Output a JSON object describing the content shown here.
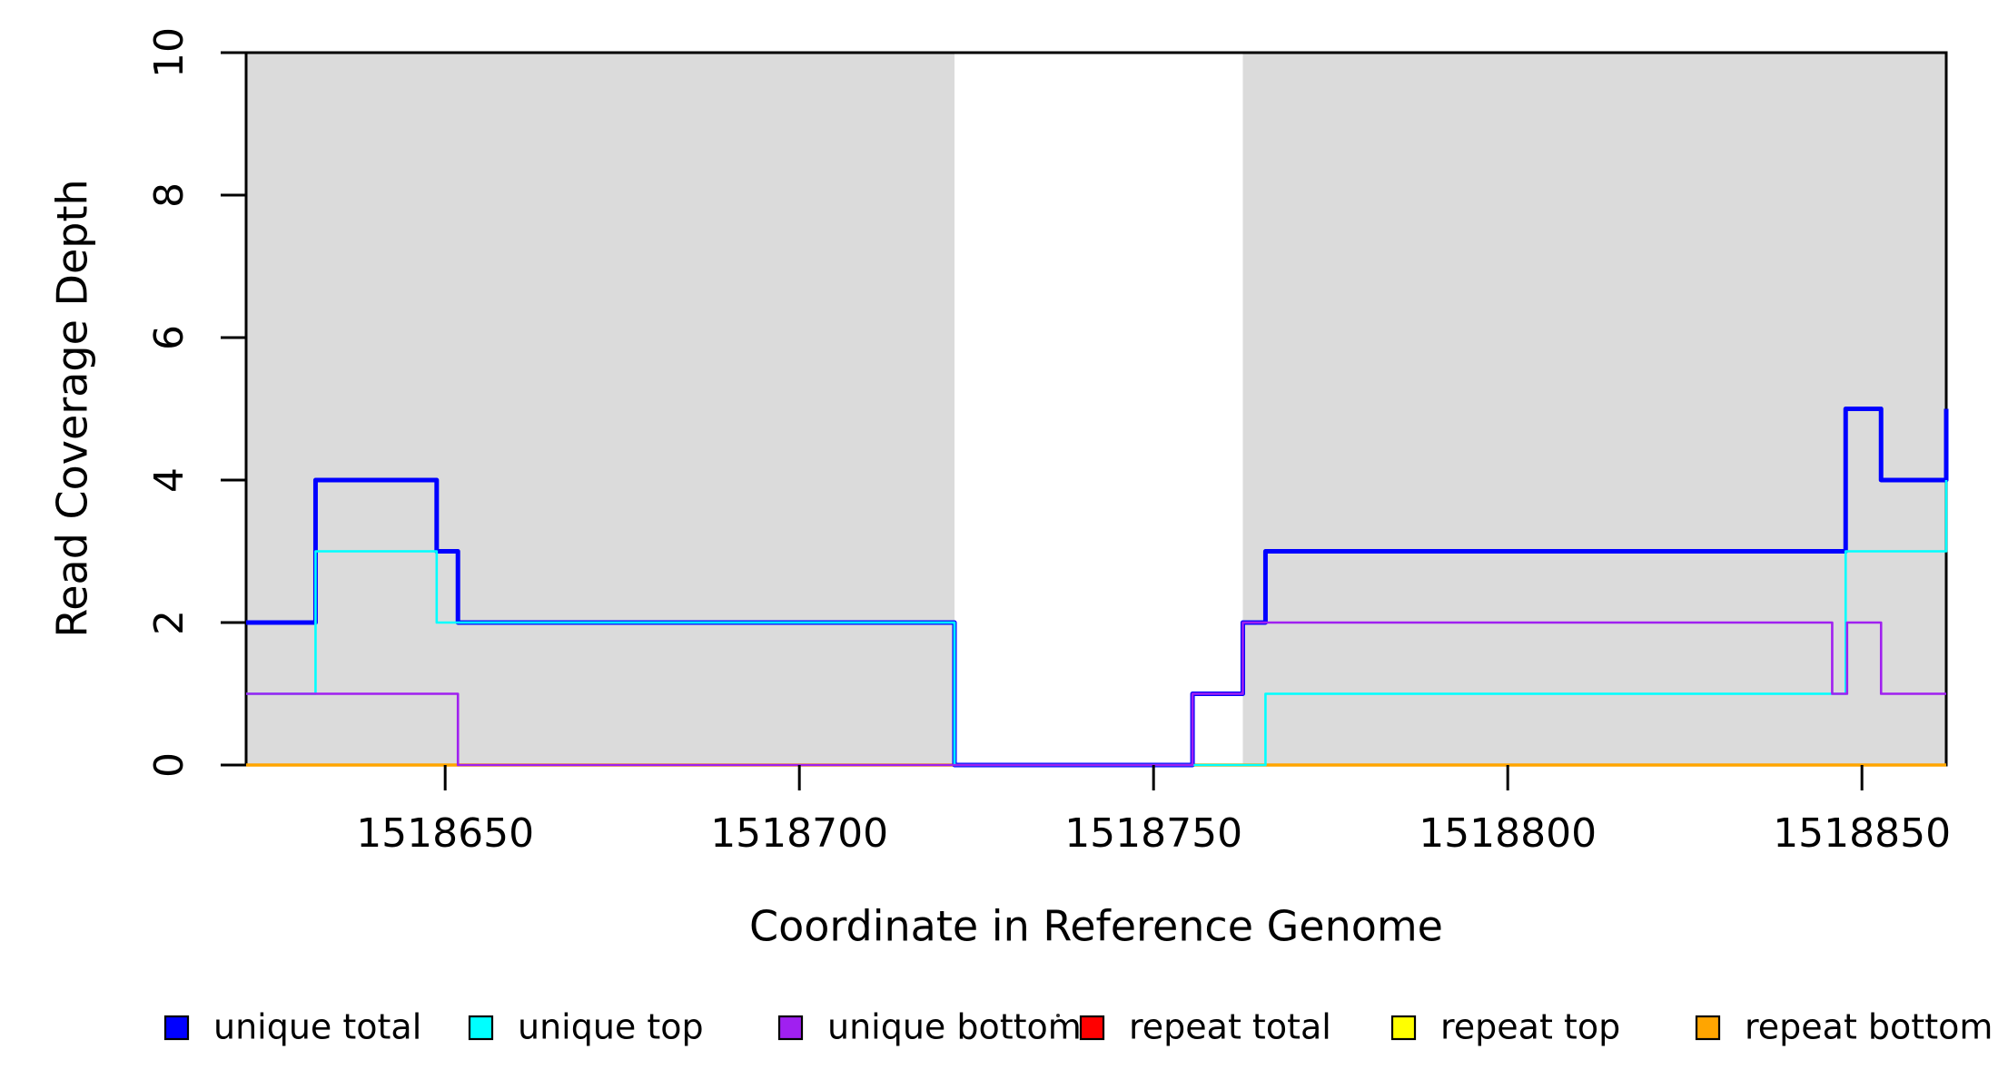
{
  "figure": {
    "background": "#ffffff",
    "text_color": "#000000"
  },
  "chart_data": {
    "type": "line",
    "subtype": "step-coverage",
    "title": "",
    "xlabel": "Coordinate in Reference Genome",
    "ylabel": "Read Coverage Depth",
    "xlim": [
      1518621.9,
      1518861.9
    ],
    "ylim": [
      0,
      10
    ],
    "xticks": [
      1518650,
      1518700,
      1518750,
      1518800,
      1518850
    ],
    "yticks": [
      0,
      2,
      4,
      6,
      8,
      10
    ],
    "grid": false,
    "legend_position": "bottom-horizontal",
    "shaded_regions": {
      "color": "#dbdbdb",
      "ranges": [
        [
          1518621.9,
          1518721.9
        ],
        [
          1518762.6,
          1518861.9
        ]
      ]
    },
    "series": [
      {
        "name": "repeat-total",
        "label": "repeat total",
        "color": "#ff0000",
        "line_width": 2.6,
        "steps": [
          [
            1518621.9,
            0
          ]
        ]
      },
      {
        "name": "repeat-top",
        "label": "repeat top",
        "color": "#ffff00",
        "line_width": 2.6,
        "steps": [
          [
            1518621.9,
            0
          ]
        ]
      },
      {
        "name": "repeat-bottom",
        "label": "repeat bottom",
        "color": "#ffa500",
        "line_width": 3.5,
        "steps": [
          [
            1518621.9,
            0
          ]
        ]
      },
      {
        "name": "unique-total",
        "label": "unique total",
        "color": "#0000ff",
        "line_width": 5,
        "steps": [
          [
            1518621.9,
            2
          ],
          [
            1518631.7,
            4
          ],
          [
            1518648.8,
            3
          ],
          [
            1518651.8,
            2
          ],
          [
            1518721.9,
            0
          ],
          [
            1518755.5,
            1
          ],
          [
            1518762.6,
            2
          ],
          [
            1518765.8,
            3
          ],
          [
            1518847.7,
            5
          ],
          [
            1518852.7,
            4
          ],
          [
            1518861.9,
            5
          ]
        ]
      },
      {
        "name": "unique-top",
        "label": "unique top",
        "color": "#00ffff",
        "line_width": 2.6,
        "steps": [
          [
            1518621.9,
            1
          ],
          [
            1518631.7,
            3
          ],
          [
            1518648.8,
            2
          ],
          [
            1518721.9,
            0
          ],
          [
            1518765.8,
            1
          ],
          [
            1518847.7,
            3
          ],
          [
            1518861.9,
            4
          ]
        ]
      },
      {
        "name": "unique-bottom",
        "label": "unique bottom",
        "color": "#a020f0",
        "line_width": 2.6,
        "steps": [
          [
            1518621.9,
            1
          ],
          [
            1518651.8,
            0
          ],
          [
            1518755.5,
            1
          ],
          [
            1518762.6,
            2
          ],
          [
            1518845.8,
            1
          ],
          [
            1518847.9,
            2
          ],
          [
            1518852.7,
            1
          ]
        ]
      }
    ],
    "legend_entries": [
      {
        "label": "unique total",
        "color": "#0000ff"
      },
      {
        "label": "unique top",
        "color": "#00ffff"
      },
      {
        "label": "unique bottom",
        "color": "#a020f0"
      },
      {
        "label": "repeat total",
        "color": "#ff0000"
      },
      {
        "label": "repeat top",
        "color": "#ffff00"
      },
      {
        "label": "repeat bottom",
        "color": "#ffa500"
      }
    ]
  }
}
